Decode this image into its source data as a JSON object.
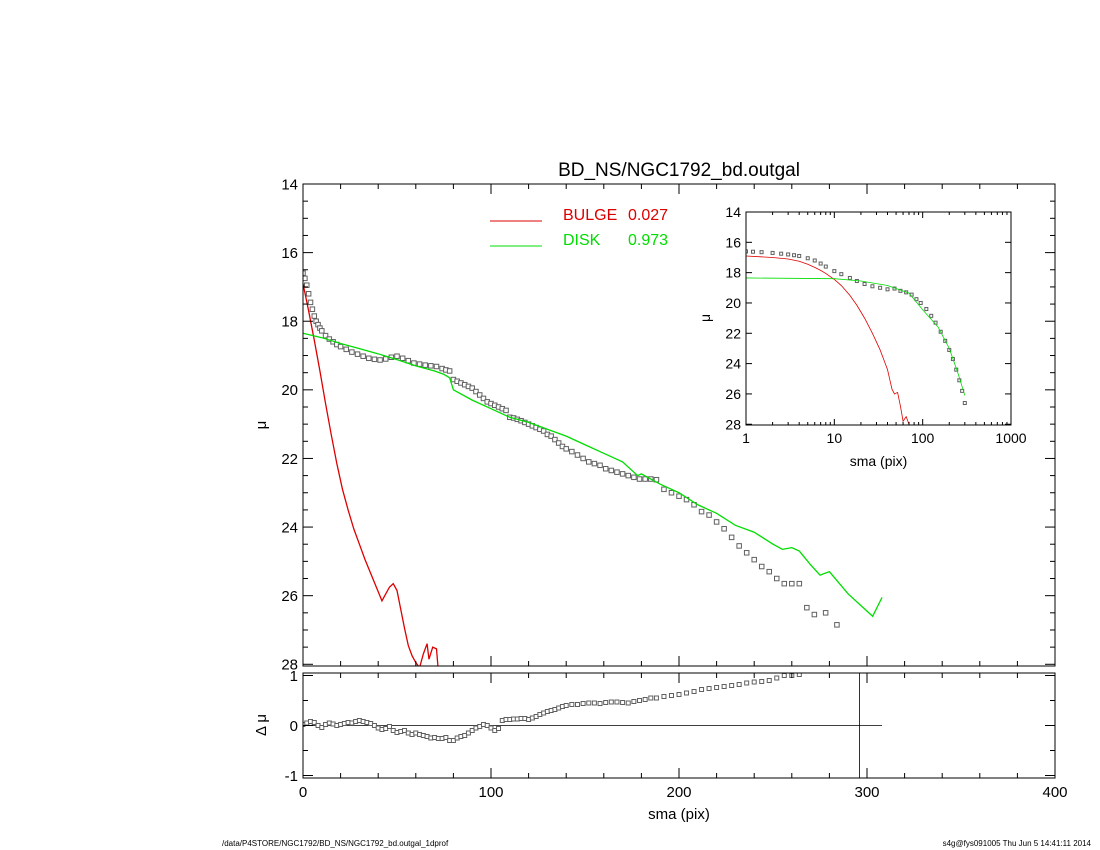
{
  "chart_data": [
    {
      "type": "scatter",
      "title": "BD_NS/NGC1792_bd.outgal",
      "xlabel": "",
      "ylabel": "μ",
      "xlim": [
        0,
        400
      ],
      "ylim": [
        28,
        14
      ],
      "yticks": [
        "14",
        "16",
        "18",
        "20",
        "22",
        "24",
        "26",
        "28"
      ],
      "legend_placement": "top-center",
      "legend": [
        {
          "label": "BULGE",
          "value": "0.027",
          "color": "#dd0000"
        },
        {
          "label": "DISK",
          "value": "0.973",
          "color": "#00dd00"
        }
      ],
      "series": [
        {
          "role": "data",
          "style": "open squares",
          "color": "#606060",
          "x": [
            0,
            1,
            2,
            3,
            4,
            5,
            6,
            7,
            8,
            9,
            10,
            12,
            14,
            16,
            18,
            20,
            23,
            26,
            29,
            32,
            35,
            38,
            41,
            44,
            47,
            50,
            53,
            56,
            59,
            62,
            65,
            68,
            71,
            74,
            76,
            78,
            80,
            82,
            84,
            86,
            88,
            90,
            92,
            94,
            96,
            98,
            100,
            102,
            104,
            106,
            108,
            110,
            112,
            114,
            116,
            118,
            120,
            122,
            124,
            126,
            128,
            130,
            132,
            134,
            136,
            138,
            140,
            143,
            146,
            149,
            152,
            155,
            158,
            161,
            164,
            167,
            170,
            173,
            176,
            179,
            182,
            185,
            188,
            192,
            196,
            200,
            204,
            208,
            212,
            216,
            220,
            224,
            228,
            232,
            236,
            240,
            244,
            248,
            252,
            256,
            260,
            264,
            268,
            272,
            278,
            284
          ],
          "y": [
            16.6,
            16.75,
            16.95,
            17.2,
            17.45,
            17.65,
            17.85,
            18.0,
            18.1,
            18.2,
            18.28,
            18.42,
            18.52,
            18.6,
            18.68,
            18.74,
            18.82,
            18.9,
            18.96,
            19.02,
            19.08,
            19.11,
            19.13,
            19.1,
            19.05,
            19.02,
            19.08,
            19.15,
            19.22,
            19.25,
            19.28,
            19.3,
            19.32,
            19.38,
            19.42,
            19.45,
            19.7,
            19.75,
            19.8,
            19.85,
            19.9,
            19.95,
            20.05,
            20.15,
            20.25,
            20.35,
            20.4,
            20.45,
            20.5,
            20.55,
            20.6,
            20.8,
            20.82,
            20.86,
            20.9,
            20.95,
            21.0,
            21.05,
            21.1,
            21.15,
            21.2,
            21.3,
            21.35,
            21.45,
            21.55,
            21.65,
            21.72,
            21.8,
            21.9,
            22.0,
            22.1,
            22.15,
            22.2,
            22.3,
            22.35,
            22.4,
            22.45,
            22.5,
            22.55,
            22.6,
            22.6,
            22.6,
            22.62,
            22.9,
            23.0,
            23.1,
            23.2,
            23.35,
            23.55,
            23.65,
            23.85,
            24.05,
            24.3,
            24.55,
            24.75,
            24.95,
            25.15,
            25.3,
            25.5,
            25.65,
            25.65,
            25.65,
            26.35,
            26.55,
            26.5,
            26.85
          ]
        },
        {
          "role": "bulge model",
          "style": "line",
          "color": "#dd0000",
          "x": [
            0,
            3,
            6,
            9,
            12,
            15,
            18,
            21,
            24,
            27,
            30,
            33,
            36,
            39,
            42,
            44,
            46,
            48,
            50,
            52,
            54,
            56,
            58,
            60,
            62,
            64,
            66,
            67,
            69,
            71,
            72
          ],
          "y": [
            16.9,
            17.7,
            18.55,
            19.45,
            20.4,
            21.3,
            22.15,
            22.9,
            23.5,
            24.05,
            24.5,
            24.95,
            25.35,
            25.75,
            26.15,
            25.95,
            25.75,
            25.65,
            25.85,
            26.4,
            26.95,
            27.45,
            27.75,
            27.95,
            28.1,
            27.7,
            27.4,
            27.85,
            27.5,
            27.55,
            28.2
          ]
        },
        {
          "role": "disk model",
          "style": "line",
          "color": "#00dd00",
          "x": [
            0,
            10,
            20,
            30,
            40,
            50,
            60,
            70,
            75,
            78,
            80,
            90,
            100,
            110,
            120,
            130,
            140,
            150,
            160,
            170,
            178,
            180,
            185,
            190,
            200,
            210,
            220,
            230,
            240,
            250,
            255,
            260,
            264,
            270,
            275,
            280,
            290,
            303,
            308
          ],
          "y": [
            18.35,
            18.48,
            18.65,
            18.8,
            18.95,
            19.12,
            19.3,
            19.45,
            19.55,
            19.65,
            20.0,
            20.3,
            20.55,
            20.8,
            20.95,
            21.15,
            21.35,
            21.6,
            21.85,
            22.1,
            22.5,
            22.45,
            22.6,
            22.75,
            23.0,
            23.35,
            23.6,
            23.95,
            24.15,
            24.5,
            24.65,
            24.6,
            24.7,
            25.1,
            25.4,
            25.3,
            25.95,
            26.6,
            26.05
          ]
        }
      ]
    },
    {
      "type": "scatter",
      "title": "",
      "xlabel": "sma (pix)",
      "ylabel": "μ",
      "xscale": "log",
      "xlim": [
        1,
        1000
      ],
      "ylim": [
        28,
        14
      ],
      "xticks": [
        "1",
        "10",
        "100",
        "1000"
      ],
      "yticks": [
        "14",
        "16",
        "18",
        "20",
        "22",
        "24",
        "26",
        "28"
      ],
      "series": [
        {
          "role": "data",
          "style": "open squares",
          "color": "#606060",
          "x": [
            1.0,
            1.2,
            1.5,
            2.0,
            2.5,
            3.0,
            3.5,
            4.0,
            5.0,
            6.0,
            7.0,
            8.0,
            10,
            12,
            15,
            18,
            22,
            27,
            33,
            40,
            48,
            56,
            65,
            75,
            85,
            95,
            110,
            125,
            140,
            160,
            180,
            200,
            220,
            240,
            260,
            280,
            300
          ],
          "y": [
            16.6,
            16.62,
            16.65,
            16.7,
            16.75,
            16.8,
            16.85,
            16.9,
            17.05,
            17.2,
            17.4,
            17.6,
            17.9,
            18.1,
            18.35,
            18.55,
            18.75,
            18.9,
            19.0,
            19.1,
            19.05,
            19.2,
            19.3,
            19.45,
            19.75,
            20.0,
            20.4,
            20.85,
            21.3,
            21.9,
            22.5,
            23.1,
            23.7,
            24.4,
            25.1,
            25.8,
            26.6
          ]
        },
        {
          "role": "bulge model",
          "style": "line",
          "color": "#dd0000",
          "x": [
            1,
            2,
            3,
            4,
            5,
            6,
            7,
            8,
            10,
            12,
            15,
            18,
            22,
            27,
            33,
            40,
            45,
            48,
            52,
            56,
            60,
            65,
            70
          ],
          "y": [
            16.9,
            17.0,
            17.1,
            17.25,
            17.45,
            17.65,
            17.85,
            18.05,
            18.45,
            18.85,
            19.5,
            20.15,
            21.0,
            22.0,
            23.1,
            24.4,
            25.7,
            26.0,
            25.9,
            26.8,
            27.8,
            27.5,
            28.0
          ]
        },
        {
          "role": "disk model",
          "style": "line",
          "color": "#00dd00",
          "x": [
            1,
            10,
            20,
            40,
            70,
            100,
            150,
            200,
            250,
            300
          ],
          "y": [
            18.35,
            18.4,
            18.55,
            18.85,
            19.35,
            20.45,
            21.6,
            23.0,
            24.6,
            26.1
          ]
        }
      ]
    },
    {
      "type": "scatter",
      "title": "",
      "xlabel": "sma (pix)",
      "ylabel": "Δ μ",
      "xlim": [
        0,
        400
      ],
      "ylim": [
        -1,
        1
      ],
      "xticks": [
        "0",
        "100",
        "200",
        "300",
        "400"
      ],
      "yticks": [
        "1",
        "0",
        "-1"
      ],
      "zero_line": true,
      "vertical_marker_x": 296,
      "series": [
        {
          "role": "residual",
          "style": "open squares",
          "color": "#606060",
          "x": [
            0,
            2,
            4,
            6,
            8,
            10,
            12,
            14,
            16,
            18,
            20,
            22,
            24,
            26,
            28,
            30,
            32,
            34,
            36,
            38,
            40,
            42,
            44,
            46,
            48,
            50,
            52,
            54,
            56,
            58,
            60,
            62,
            64,
            66,
            68,
            70,
            72,
            74,
            76,
            78,
            80,
            82,
            84,
            86,
            88,
            90,
            92,
            94,
            96,
            98,
            100,
            102,
            104,
            106,
            108,
            110,
            112,
            114,
            116,
            118,
            120,
            122,
            124,
            126,
            128,
            130,
            132,
            134,
            136,
            138,
            140,
            143,
            146,
            149,
            152,
            155,
            158,
            161,
            164,
            167,
            170,
            173,
            176,
            179,
            182,
            185,
            188,
            192,
            196,
            200,
            204,
            208,
            212,
            216,
            220,
            224,
            228,
            232,
            236,
            240,
            244,
            248,
            252,
            256,
            260,
            264
          ],
          "y": [
            0.02,
            0.05,
            0.08,
            0.06,
            0.0,
            -0.04,
            0.02,
            0.05,
            0.03,
            0.0,
            0.02,
            0.04,
            0.06,
            0.05,
            0.08,
            0.1,
            0.08,
            0.06,
            0.04,
            0.0,
            -0.05,
            -0.08,
            -0.06,
            -0.02,
            -0.1,
            -0.14,
            -0.12,
            -0.1,
            -0.15,
            -0.18,
            -0.15,
            -0.18,
            -0.2,
            -0.22,
            -0.25,
            -0.24,
            -0.26,
            -0.26,
            -0.24,
            -0.3,
            -0.3,
            -0.25,
            -0.22,
            -0.2,
            -0.15,
            -0.1,
            -0.05,
            -0.02,
            0.02,
            0.0,
            -0.05,
            -0.1,
            -0.06,
            0.1,
            0.12,
            0.12,
            0.13,
            0.13,
            0.14,
            0.14,
            0.12,
            0.15,
            0.18,
            0.22,
            0.25,
            0.28,
            0.3,
            0.32,
            0.35,
            0.38,
            0.4,
            0.42,
            0.42,
            0.44,
            0.45,
            0.45,
            0.44,
            0.46,
            0.47,
            0.47,
            0.46,
            0.45,
            0.48,
            0.5,
            0.52,
            0.55,
            0.55,
            0.58,
            0.6,
            0.62,
            0.65,
            0.68,
            0.72,
            0.74,
            0.76,
            0.78,
            0.8,
            0.82,
            0.85,
            0.87,
            0.88,
            0.9,
            0.95,
            1.0,
            1.0,
            1.02
          ]
        }
      ]
    }
  ],
  "footer": {
    "left": "/data/P4STORE/NGC1792/BD_NS/NGC1792_bd.outgal_1dprof",
    "right": "s4g@fys091005  Thu Jun  5 14:41:11 2014"
  }
}
